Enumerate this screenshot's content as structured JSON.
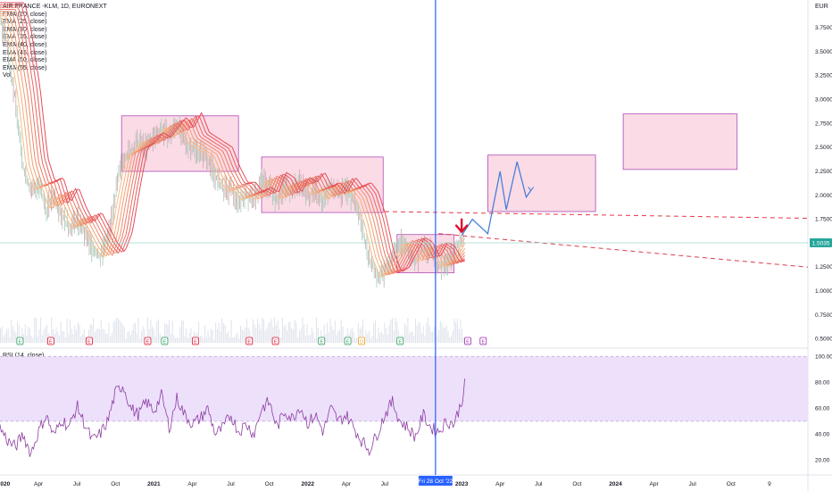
{
  "instrument": "AIR FRANCE -KLM, 1D, EURONEXT",
  "indicators": [
    "EMA (20, close)",
    "EMA (25, close)",
    "EMA (30, close)",
    "EMA (35, close)",
    "EMA (40, close)",
    "EMA (45, close)",
    "EMA (50, close)",
    "EMA (55, close)",
    "Vol"
  ],
  "rsi_label": "RSI (14, close)",
  "currency": "EUR",
  "last_price": "1.5035",
  "crosshair_date": "Fri 28 Oct '22",
  "colors": {
    "candle": "#d0b0b8",
    "ema_top": "#f5a97a",
    "ema_bottom": "#e64a5a",
    "box_fill": "#f8c8d8",
    "box_stroke": "#b04bb5",
    "dashed": "#e03a4a",
    "projection": "#4a80d8",
    "crosshair": "#2962ff",
    "rsi_line": "#8c3ea0",
    "rsi_band": "#ede0fb",
    "arrow": "#e0102c",
    "last_price_bg": "#26a69a"
  },
  "chart_data": {
    "type": "line",
    "title": "AIR FRANCE -KLM, 1D, EURONEXT",
    "y_ticks": [
      "3.7500",
      "3.5000",
      "3.2500",
      "3.0000",
      "2.7500",
      "2.5000",
      "2.2500",
      "2.0000",
      "1.7500",
      "1.5000",
      "1.2500",
      "1.0000",
      "0.7500",
      "0.5000"
    ],
    "x_ticks": [
      "2020",
      "Apr",
      "Jul",
      "Oct",
      "2021",
      "Apr",
      "Jul",
      "Oct",
      "2022",
      "Apr",
      "Jul",
      "2023",
      "Apr",
      "Jul",
      "Oct",
      "2024",
      "Apr",
      "Jul",
      "Oct",
      "9"
    ],
    "ylim": [
      0.45,
      3.9
    ],
    "price_series": {
      "x": [
        2020.0,
        2020.04,
        2020.1,
        2020.15,
        2020.2,
        2020.25,
        2020.3,
        2020.35,
        2020.4,
        2020.45,
        2020.5,
        2020.55,
        2020.6,
        2020.65,
        2020.7,
        2020.75,
        2020.8,
        2020.85,
        2020.9,
        2020.95,
        2021.0,
        2021.05,
        2021.1,
        2021.15,
        2021.2,
        2021.25,
        2021.3,
        2021.35,
        2021.4,
        2021.45,
        2021.5,
        2021.55,
        2021.6,
        2021.65,
        2021.7,
        2021.75,
        2021.8,
        2021.85,
        2021.9,
        2021.95,
        2022.0,
        2022.05,
        2022.1,
        2022.15,
        2022.2,
        2022.25,
        2022.3,
        2022.35,
        2022.4,
        2022.45,
        2022.5,
        2022.55,
        2022.6,
        2022.65,
        2022.7,
        2022.75,
        2022.8,
        2022.85,
        2022.9,
        2022.95,
        2023.0,
        2023.02
      ],
      "y": [
        3.85,
        3.6,
        3.0,
        2.3,
        2.05,
        2.1,
        1.85,
        2.0,
        1.8,
        1.65,
        1.75,
        1.6,
        1.45,
        1.35,
        1.55,
        2.0,
        2.4,
        2.45,
        2.55,
        2.5,
        2.6,
        2.7,
        2.6,
        2.75,
        2.55,
        2.5,
        2.45,
        2.4,
        2.2,
        2.05,
        2.05,
        1.95,
        2.0,
        1.95,
        2.15,
        2.1,
        1.95,
        2.1,
        2.05,
        2.15,
        2.0,
        2.05,
        1.95,
        2.1,
        2.0,
        2.05,
        1.95,
        1.7,
        1.35,
        1.15,
        1.2,
        1.35,
        1.5,
        1.45,
        1.3,
        1.45,
        1.4,
        1.25,
        1.3,
        1.4,
        1.55,
        1.5
      ]
    },
    "rsi": {
      "ylim": [
        10,
        105
      ],
      "y_ticks": [
        "100.00",
        "80.00",
        "60.00",
        "40.00",
        "20.00"
      ],
      "band": [
        50,
        100
      ],
      "x": [
        2020.0,
        2020.05,
        2020.1,
        2020.15,
        2020.2,
        2020.25,
        2020.3,
        2020.35,
        2020.4,
        2020.45,
        2020.5,
        2020.55,
        2020.6,
        2020.65,
        2020.7,
        2020.75,
        2020.8,
        2020.85,
        2020.9,
        2020.95,
        2021.0,
        2021.05,
        2021.1,
        2021.15,
        2021.2,
        2021.25,
        2021.3,
        2021.35,
        2021.4,
        2021.45,
        2021.5,
        2021.55,
        2021.6,
        2021.65,
        2021.7,
        2021.75,
        2021.8,
        2021.85,
        2021.9,
        2021.95,
        2022.0,
        2022.05,
        2022.1,
        2022.15,
        2022.2,
        2022.25,
        2022.3,
        2022.35,
        2022.4,
        2022.45,
        2022.5,
        2022.55,
        2022.6,
        2022.65,
        2022.7,
        2022.75,
        2022.8,
        2022.85,
        2022.9,
        2022.95,
        2023.0,
        2023.02
      ],
      "y": [
        45,
        35,
        30,
        40,
        25,
        42,
        55,
        38,
        52,
        45,
        62,
        48,
        35,
        40,
        50,
        72,
        78,
        60,
        55,
        65,
        58,
        70,
        45,
        68,
        55,
        48,
        52,
        60,
        40,
        45,
        55,
        42,
        48,
        40,
        60,
        65,
        45,
        58,
        52,
        62,
        48,
        55,
        42,
        60,
        50,
        55,
        45,
        35,
        28,
        40,
        55,
        65,
        50,
        45,
        38,
        55,
        45,
        42,
        50,
        48,
        65,
        78
      ]
    },
    "annotations": {
      "boxes": [
        {
          "x0": 2020.79,
          "x1": 2021.55,
          "y0": 2.25,
          "y1": 2.83
        },
        {
          "x0": 2021.7,
          "x1": 2022.49,
          "y0": 1.82,
          "y1": 2.4
        },
        {
          "x0": 2022.58,
          "x1": 2022.95,
          "y0": 1.19,
          "y1": 1.59
        },
        {
          "x0": 2023.17,
          "x1": 2023.87,
          "y0": 1.83,
          "y1": 2.42
        },
        {
          "x0": 2024.05,
          "x1": 2024.79,
          "y0": 2.27,
          "y1": 2.85
        }
      ],
      "trend_lines": [
        {
          "x0": 2022.5,
          "y0": 1.83,
          "x1": 2025.25,
          "y1": 1.76
        },
        {
          "x0": 2022.85,
          "y0": 1.6,
          "x1": 2025.25,
          "y1": 1.25
        }
      ],
      "projection_path": {
        "x": [
          2023.0,
          2023.07,
          2023.17,
          2023.25,
          2023.29,
          2023.36,
          2023.42,
          2023.45
        ],
        "y": [
          1.58,
          1.75,
          1.6,
          2.25,
          1.85,
          2.35,
          1.98,
          2.05
        ]
      },
      "arrow": {
        "x": 2023.0,
        "y": 1.6
      },
      "crosshair_x": 2022.83
    },
    "volume_markers": [
      {
        "x": 2020.13,
        "type": "E",
        "color": "#2a9d5c"
      },
      {
        "x": 2020.33,
        "type": "E",
        "color": "#e0102c"
      },
      {
        "x": 2020.58,
        "type": "E",
        "color": "#e0102c"
      },
      {
        "x": 2020.96,
        "type": "E",
        "color": "#e0102c"
      },
      {
        "x": 2021.07,
        "type": "E",
        "color": "#2a9d5c"
      },
      {
        "x": 2021.27,
        "type": "E",
        "color": "#e0102c"
      },
      {
        "x": 2021.62,
        "type": "E",
        "color": "#e0102c"
      },
      {
        "x": 2021.79,
        "type": "E",
        "color": "#e0102c"
      },
      {
        "x": 2022.09,
        "type": "E",
        "color": "#2a9d5c"
      },
      {
        "x": 2022.26,
        "type": "E",
        "color": "#2a9d5c"
      },
      {
        "x": 2022.35,
        "type": "D",
        "color": "#f0a020"
      },
      {
        "x": 2022.6,
        "type": "E",
        "color": "#2a9d5c"
      },
      {
        "x": 2023.04,
        "type": "E",
        "color": "#9c27b0"
      },
      {
        "x": 2023.14,
        "type": "E",
        "color": "#9c27b0"
      }
    ]
  }
}
